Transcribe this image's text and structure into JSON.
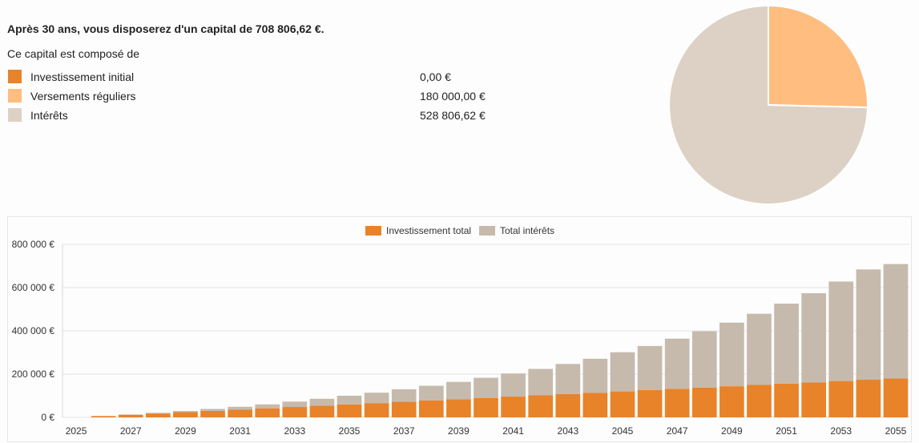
{
  "summary": {
    "headline": "Après 30 ans, vous disposerez d'un capital de 708 806,62 €.",
    "intro": "Ce capital est composé de",
    "items": [
      {
        "label": "Investissement initial",
        "value": "0,00 €",
        "color": "#e8832a"
      },
      {
        "label": "Versements réguliers",
        "value": "180 000,00 €",
        "color": "#ffbd80"
      },
      {
        "label": "Intérêts",
        "value": "528 806,62 €",
        "color": "#ddd1c5"
      }
    ]
  },
  "chart_data": [
    {
      "type": "pie",
      "slices": [
        {
          "label": "Investissement initial",
          "value": 0.0,
          "color": "#e8832a"
        },
        {
          "label": "Versements réguliers",
          "value": 180000.0,
          "color": "#ffbd80"
        },
        {
          "label": "Intérêts",
          "value": 528806.62,
          "color": "#ddd1c5"
        }
      ]
    },
    {
      "type": "bar",
      "stacked": true,
      "legend_position": "top-center",
      "grid": true,
      "ylim": [
        0,
        800000
      ],
      "yticks": [
        "0 €",
        "200 000 €",
        "400 000 €",
        "600 000 €",
        "800 000 €"
      ],
      "x": [
        "2025",
        "2026",
        "2027",
        "2028",
        "2029",
        "2030",
        "2031",
        "2032",
        "2033",
        "2034",
        "2035",
        "2036",
        "2037",
        "2038",
        "2039",
        "2040",
        "2041",
        "2042",
        "2043",
        "2044",
        "2045",
        "2046",
        "2047",
        "2048",
        "2049",
        "2050",
        "2051",
        "2052",
        "2053",
        "2054",
        "2055"
      ],
      "xtick_labels": [
        "2025",
        "",
        "2027",
        "",
        "2029",
        "",
        "2031",
        "",
        "2033",
        "",
        "2035",
        "",
        "2037",
        "",
        "2039",
        "",
        "2041",
        "",
        "2043",
        "",
        "2045",
        "",
        "2047",
        "",
        "2049",
        "",
        "2051",
        "",
        "2053",
        "",
        "2055"
      ],
      "series": [
        {
          "name": "Investissement total",
          "color": "#e8832a",
          "values": [
            0,
            6000,
            12000,
            18000,
            24000,
            30000,
            36000,
            42000,
            48000,
            54000,
            60000,
            66000,
            72000,
            78000,
            84000,
            90000,
            96000,
            102000,
            108000,
            114000,
            120000,
            126000,
            132000,
            138000,
            144000,
            150000,
            156000,
            162000,
            168000,
            174000,
            180000
          ]
        },
        {
          "name": "Total intérêts",
          "color": "#c6baad",
          "values": [
            0,
            400,
            1500,
            3000,
            5500,
            9000,
            13000,
            18000,
            25000,
            32000,
            40000,
            48000,
            58000,
            68000,
            80000,
            93000,
            107000,
            122000,
            139000,
            157000,
            181000,
            204000,
            232000,
            260000,
            294000,
            329000,
            370000,
            412000,
            460000,
            510000,
            528807
          ]
        }
      ]
    }
  ]
}
